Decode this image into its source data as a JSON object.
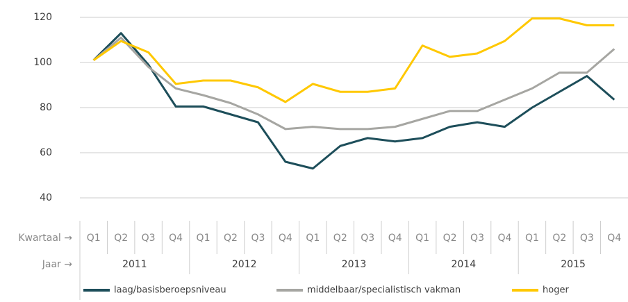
{
  "chart_data": {
    "type": "line",
    "categories": [
      "Q1",
      "Q2",
      "Q3",
      "Q4",
      "Q1",
      "Q2",
      "Q3",
      "Q4",
      "Q1",
      "Q2",
      "Q3",
      "Q4",
      "Q1",
      "Q2",
      "Q3",
      "Q4",
      "Q1",
      "Q2",
      "Q3",
      "Q4"
    ],
    "years": [
      "2011",
      "2012",
      "2013",
      "2014",
      "2015"
    ],
    "row_labels": [
      "Kwartaal →",
      "Jaar →"
    ],
    "series": [
      {
        "name": "laag/basisberoepsniveau",
        "color": "#1d4e5a",
        "values": [
          101,
          113,
          99,
          80.5,
          80.5,
          77,
          73.5,
          56,
          53,
          63,
          66.5,
          65,
          66.5,
          71.5,
          73.5,
          71.5,
          80,
          87,
          94,
          83.5
        ]
      },
      {
        "name": "middelbaar/specialistisch vakman",
        "color": "#a6a6a2",
        "values": [
          101,
          111,
          98,
          88.5,
          85.5,
          82,
          77,
          70.5,
          71.5,
          70.5,
          70.5,
          71.5,
          75,
          78.5,
          78.5,
          83.5,
          88.5,
          95.5,
          95.5,
          106
        ]
      },
      {
        "name": "hoger",
        "color": "#ffc800",
        "values": [
          101,
          109.5,
          104.5,
          90.5,
          92,
          92,
          89,
          82.5,
          90.5,
          87,
          87,
          88.5,
          107.5,
          102.5,
          104,
          109.5,
          119.5,
          119.5,
          116.5,
          116.5
        ]
      }
    ],
    "ylim": [
      40,
      120
    ],
    "yticks": [
      40,
      60,
      80,
      100,
      120
    ],
    "grid": true
  }
}
